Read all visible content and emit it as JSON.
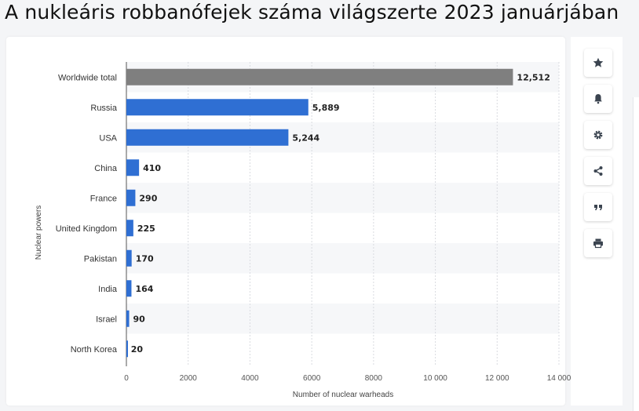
{
  "page": {
    "title": "A nukleáris robbanófejek száma világszerte 2023 januárjában"
  },
  "toolbar": [
    {
      "icon": "star-icon",
      "name": "bookmark-button"
    },
    {
      "icon": "bell-icon",
      "name": "notification-button"
    },
    {
      "icon": "gear-icon",
      "name": "settings-button"
    },
    {
      "icon": "share-icon",
      "name": "share-button"
    },
    {
      "icon": "quote-icon",
      "name": "cite-button"
    },
    {
      "icon": "print-icon",
      "name": "print-button"
    }
  ],
  "chart_data": {
    "type": "bar",
    "orientation": "horizontal",
    "categories": [
      "Worldwide total",
      "Russia",
      "USA",
      "China",
      "France",
      "United Kingdom",
      "Pakistan",
      "India",
      "Israel",
      "North Korea"
    ],
    "values": [
      12512,
      5889,
      5244,
      410,
      290,
      225,
      170,
      164,
      90,
      20
    ],
    "value_labels": [
      "12,512",
      "5,889",
      "5,244",
      "410",
      "290",
      "225",
      "170",
      "164",
      "90",
      "20"
    ],
    "bar_colors": [
      "#7f7f7f",
      "#2f6fd3",
      "#2f6fd3",
      "#2f6fd3",
      "#2f6fd3",
      "#2f6fd3",
      "#2f6fd3",
      "#2f6fd3",
      "#2f6fd3",
      "#2f6fd3"
    ],
    "xlabel": "Number of nuclear warheads",
    "ylabel": "Nuclear powers",
    "xlim": [
      0,
      14000
    ],
    "xticks": [
      0,
      2000,
      4000,
      6000,
      8000,
      10000,
      12000,
      14000
    ],
    "xtick_labels": [
      "0",
      "2000",
      "4000",
      "6000",
      "8000",
      "10 000",
      "12 000",
      "14 000"
    ],
    "grid": true,
    "alternate_row_shading": true
  }
}
